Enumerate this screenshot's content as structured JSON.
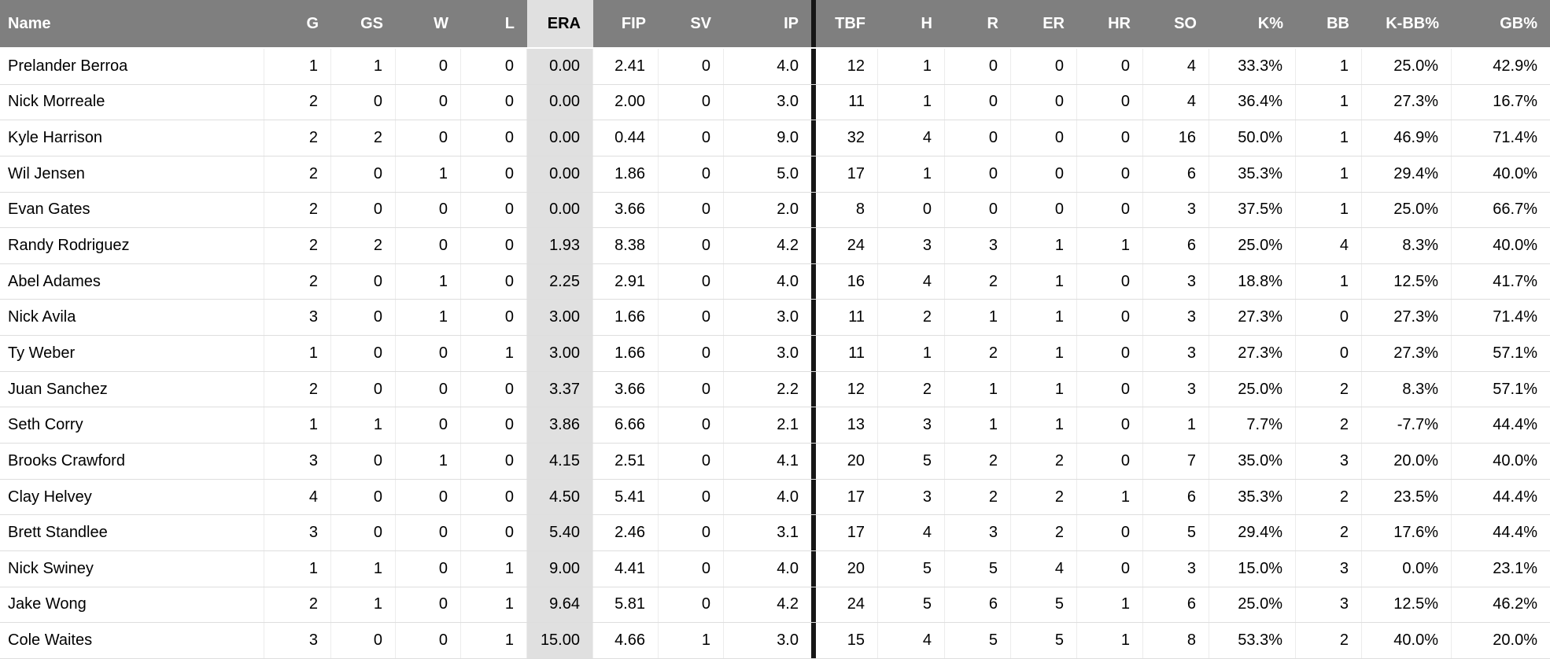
{
  "colors": {
    "header_bg": "#7f7f7f",
    "header_text": "#ffffff",
    "highlight_bg": "#e0e0e0",
    "divider": "#161616",
    "row_border": "#dedede"
  },
  "table": {
    "highlighted_column": "era",
    "divider_after_column": "ip",
    "columns": [
      {
        "key": "name",
        "label": "Name"
      },
      {
        "key": "g",
        "label": "G"
      },
      {
        "key": "gs",
        "label": "GS"
      },
      {
        "key": "w",
        "label": "W"
      },
      {
        "key": "l",
        "label": "L"
      },
      {
        "key": "era",
        "label": "ERA"
      },
      {
        "key": "fip",
        "label": "FIP"
      },
      {
        "key": "sv",
        "label": "SV"
      },
      {
        "key": "ip",
        "label": "IP"
      },
      {
        "key": "tbf",
        "label": "TBF"
      },
      {
        "key": "h",
        "label": "H"
      },
      {
        "key": "r",
        "label": "R"
      },
      {
        "key": "er",
        "label": "ER"
      },
      {
        "key": "hr",
        "label": "HR"
      },
      {
        "key": "so",
        "label": "SO"
      },
      {
        "key": "k_pct",
        "label": "K%"
      },
      {
        "key": "bb",
        "label": "BB"
      },
      {
        "key": "k_bb_pct",
        "label": "K-BB%"
      },
      {
        "key": "gb_pct",
        "label": "GB%"
      }
    ],
    "rows": [
      {
        "name": "Prelander Berroa",
        "g": "1",
        "gs": "1",
        "w": "0",
        "l": "0",
        "era": "0.00",
        "fip": "2.41",
        "sv": "0",
        "ip": "4.0",
        "tbf": "12",
        "h": "1",
        "r": "0",
        "er": "0",
        "hr": "0",
        "so": "4",
        "k_pct": "33.3%",
        "bb": "1",
        "k_bb_pct": "25.0%",
        "gb_pct": "42.9%"
      },
      {
        "name": "Nick Morreale",
        "g": "2",
        "gs": "0",
        "w": "0",
        "l": "0",
        "era": "0.00",
        "fip": "2.00",
        "sv": "0",
        "ip": "3.0",
        "tbf": "11",
        "h": "1",
        "r": "0",
        "er": "0",
        "hr": "0",
        "so": "4",
        "k_pct": "36.4%",
        "bb": "1",
        "k_bb_pct": "27.3%",
        "gb_pct": "16.7%"
      },
      {
        "name": "Kyle Harrison",
        "g": "2",
        "gs": "2",
        "w": "0",
        "l": "0",
        "era": "0.00",
        "fip": "0.44",
        "sv": "0",
        "ip": "9.0",
        "tbf": "32",
        "h": "4",
        "r": "0",
        "er": "0",
        "hr": "0",
        "so": "16",
        "k_pct": "50.0%",
        "bb": "1",
        "k_bb_pct": "46.9%",
        "gb_pct": "71.4%"
      },
      {
        "name": "Wil Jensen",
        "g": "2",
        "gs": "0",
        "w": "1",
        "l": "0",
        "era": "0.00",
        "fip": "1.86",
        "sv": "0",
        "ip": "5.0",
        "tbf": "17",
        "h": "1",
        "r": "0",
        "er": "0",
        "hr": "0",
        "so": "6",
        "k_pct": "35.3%",
        "bb": "1",
        "k_bb_pct": "29.4%",
        "gb_pct": "40.0%"
      },
      {
        "name": "Evan Gates",
        "g": "2",
        "gs": "0",
        "w": "0",
        "l": "0",
        "era": "0.00",
        "fip": "3.66",
        "sv": "0",
        "ip": "2.0",
        "tbf": "8",
        "h": "0",
        "r": "0",
        "er": "0",
        "hr": "0",
        "so": "3",
        "k_pct": "37.5%",
        "bb": "1",
        "k_bb_pct": "25.0%",
        "gb_pct": "66.7%"
      },
      {
        "name": "Randy Rodriguez",
        "g": "2",
        "gs": "2",
        "w": "0",
        "l": "0",
        "era": "1.93",
        "fip": "8.38",
        "sv": "0",
        "ip": "4.2",
        "tbf": "24",
        "h": "3",
        "r": "3",
        "er": "1",
        "hr": "1",
        "so": "6",
        "k_pct": "25.0%",
        "bb": "4",
        "k_bb_pct": "8.3%",
        "gb_pct": "40.0%"
      },
      {
        "name": "Abel Adames",
        "g": "2",
        "gs": "0",
        "w": "1",
        "l": "0",
        "era": "2.25",
        "fip": "2.91",
        "sv": "0",
        "ip": "4.0",
        "tbf": "16",
        "h": "4",
        "r": "2",
        "er": "1",
        "hr": "0",
        "so": "3",
        "k_pct": "18.8%",
        "bb": "1",
        "k_bb_pct": "12.5%",
        "gb_pct": "41.7%"
      },
      {
        "name": "Nick Avila",
        "g": "3",
        "gs": "0",
        "w": "1",
        "l": "0",
        "era": "3.00",
        "fip": "1.66",
        "sv": "0",
        "ip": "3.0",
        "tbf": "11",
        "h": "2",
        "r": "1",
        "er": "1",
        "hr": "0",
        "so": "3",
        "k_pct": "27.3%",
        "bb": "0",
        "k_bb_pct": "27.3%",
        "gb_pct": "71.4%"
      },
      {
        "name": "Ty Weber",
        "g": "1",
        "gs": "0",
        "w": "0",
        "l": "1",
        "era": "3.00",
        "fip": "1.66",
        "sv": "0",
        "ip": "3.0",
        "tbf": "11",
        "h": "1",
        "r": "2",
        "er": "1",
        "hr": "0",
        "so": "3",
        "k_pct": "27.3%",
        "bb": "0",
        "k_bb_pct": "27.3%",
        "gb_pct": "57.1%"
      },
      {
        "name": "Juan Sanchez",
        "g": "2",
        "gs": "0",
        "w": "0",
        "l": "0",
        "era": "3.37",
        "fip": "3.66",
        "sv": "0",
        "ip": "2.2",
        "tbf": "12",
        "h": "2",
        "r": "1",
        "er": "1",
        "hr": "0",
        "so": "3",
        "k_pct": "25.0%",
        "bb": "2",
        "k_bb_pct": "8.3%",
        "gb_pct": "57.1%"
      },
      {
        "name": "Seth Corry",
        "g": "1",
        "gs": "1",
        "w": "0",
        "l": "0",
        "era": "3.86",
        "fip": "6.66",
        "sv": "0",
        "ip": "2.1",
        "tbf": "13",
        "h": "3",
        "r": "1",
        "er": "1",
        "hr": "0",
        "so": "1",
        "k_pct": "7.7%",
        "bb": "2",
        "k_bb_pct": "-7.7%",
        "gb_pct": "44.4%"
      },
      {
        "name": "Brooks Crawford",
        "g": "3",
        "gs": "0",
        "w": "1",
        "l": "0",
        "era": "4.15",
        "fip": "2.51",
        "sv": "0",
        "ip": "4.1",
        "tbf": "20",
        "h": "5",
        "r": "2",
        "er": "2",
        "hr": "0",
        "so": "7",
        "k_pct": "35.0%",
        "bb": "3",
        "k_bb_pct": "20.0%",
        "gb_pct": "40.0%"
      },
      {
        "name": "Clay Helvey",
        "g": "4",
        "gs": "0",
        "w": "0",
        "l": "0",
        "era": "4.50",
        "fip": "5.41",
        "sv": "0",
        "ip": "4.0",
        "tbf": "17",
        "h": "3",
        "r": "2",
        "er": "2",
        "hr": "1",
        "so": "6",
        "k_pct": "35.3%",
        "bb": "2",
        "k_bb_pct": "23.5%",
        "gb_pct": "44.4%"
      },
      {
        "name": "Brett Standlee",
        "g": "3",
        "gs": "0",
        "w": "0",
        "l": "0",
        "era": "5.40",
        "fip": "2.46",
        "sv": "0",
        "ip": "3.1",
        "tbf": "17",
        "h": "4",
        "r": "3",
        "er": "2",
        "hr": "0",
        "so": "5",
        "k_pct": "29.4%",
        "bb": "2",
        "k_bb_pct": "17.6%",
        "gb_pct": "44.4%"
      },
      {
        "name": "Nick Swiney",
        "g": "1",
        "gs": "1",
        "w": "0",
        "l": "1",
        "era": "9.00",
        "fip": "4.41",
        "sv": "0",
        "ip": "4.0",
        "tbf": "20",
        "h": "5",
        "r": "5",
        "er": "4",
        "hr": "0",
        "so": "3",
        "k_pct": "15.0%",
        "bb": "3",
        "k_bb_pct": "0.0%",
        "gb_pct": "23.1%"
      },
      {
        "name": "Jake Wong",
        "g": "2",
        "gs": "1",
        "w": "0",
        "l": "1",
        "era": "9.64",
        "fip": "5.81",
        "sv": "0",
        "ip": "4.2",
        "tbf": "24",
        "h": "5",
        "r": "6",
        "er": "5",
        "hr": "1",
        "so": "6",
        "k_pct": "25.0%",
        "bb": "3",
        "k_bb_pct": "12.5%",
        "gb_pct": "46.2%"
      },
      {
        "name": "Cole Waites",
        "g": "3",
        "gs": "0",
        "w": "0",
        "l": "1",
        "era": "15.00",
        "fip": "4.66",
        "sv": "1",
        "ip": "3.0",
        "tbf": "15",
        "h": "4",
        "r": "5",
        "er": "5",
        "hr": "1",
        "so": "8",
        "k_pct": "53.3%",
        "bb": "2",
        "k_bb_pct": "40.0%",
        "gb_pct": "20.0%"
      }
    ]
  }
}
